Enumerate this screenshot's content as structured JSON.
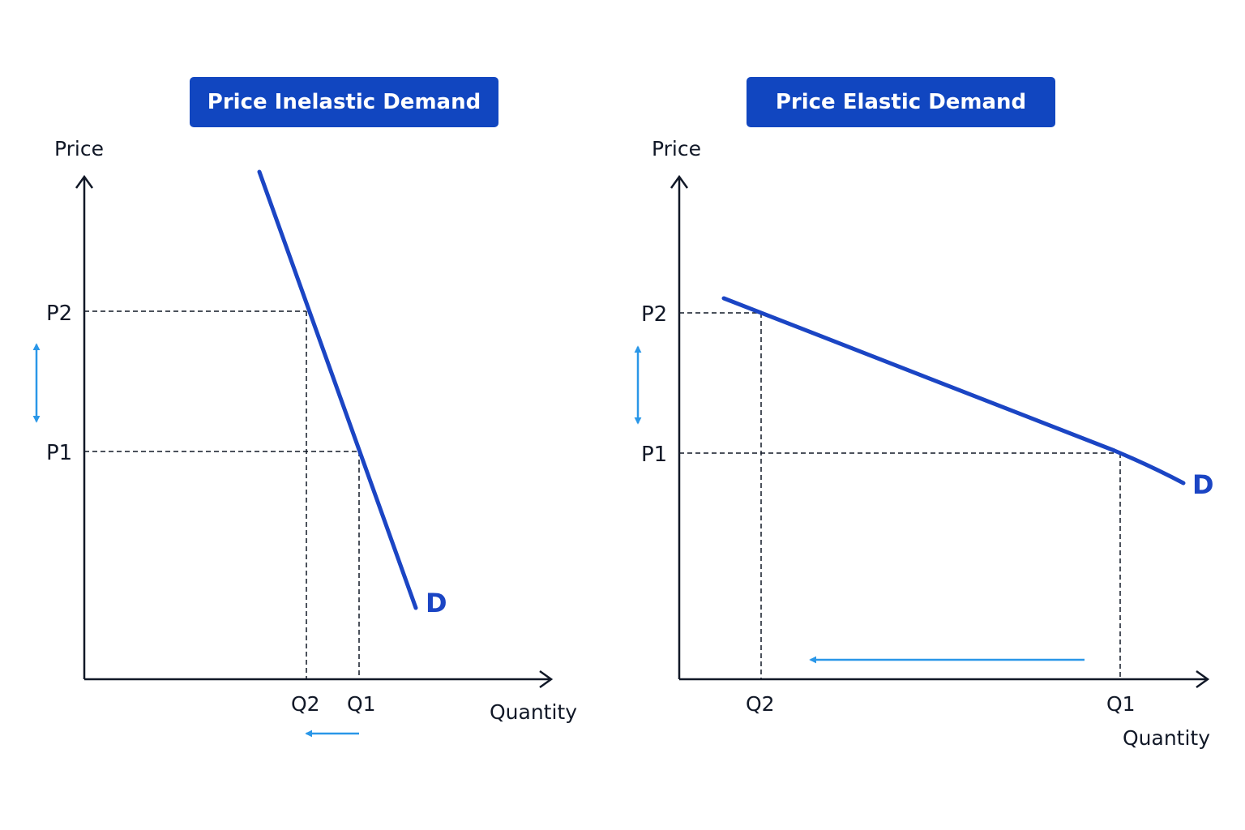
{
  "colors": {
    "accent": "#1146c0",
    "curve": "#1b45c4",
    "arrow": "#2a97e8",
    "axis": "#111827",
    "text": "#111827"
  },
  "diagrams": [
    {
      "title": "Price Inelastic Demand",
      "y_axis_label": "Price",
      "x_axis_label": "Quantity",
      "price_labels": {
        "p2": "P2",
        "p1": "P1"
      },
      "quantity_labels": {
        "q2": "Q2",
        "q1": "Q1"
      },
      "curve_label": "D"
    },
    {
      "title": "Price Elastic Demand",
      "y_axis_label": "Price",
      "x_axis_label": "Quantity",
      "price_labels": {
        "p2": "P2",
        "p1": "P1"
      },
      "quantity_labels": {
        "q2": "Q2",
        "q1": "Q1"
      },
      "curve_label": "D"
    }
  ]
}
